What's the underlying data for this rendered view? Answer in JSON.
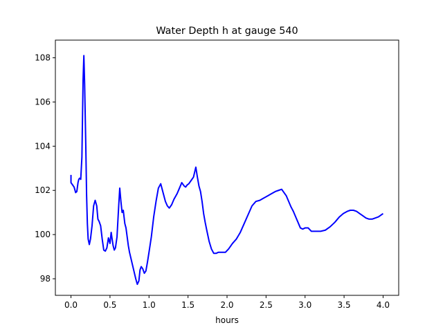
{
  "chart_data": {
    "type": "line",
    "title": "Water Depth h at gauge 540",
    "xlabel": "hours",
    "ylabel": "",
    "xlim": [
      -0.2,
      4.2
    ],
    "ylim": [
      97.25,
      108.8
    ],
    "xticks": [
      "0.0",
      "0.5",
      "1.0",
      "1.5",
      "2.0",
      "2.5",
      "3.0",
      "3.5",
      "4.0"
    ],
    "xtick_values": [
      0.0,
      0.5,
      1.0,
      1.5,
      2.0,
      2.5,
      3.0,
      3.5,
      4.0
    ],
    "yticks": [
      "98",
      "100",
      "102",
      "104",
      "106",
      "108"
    ],
    "ytick_values": [
      98,
      100,
      102,
      104,
      106,
      108
    ],
    "grid": false,
    "legend": "none",
    "series": [
      {
        "color": "#0000ff",
        "x": [
          0.0,
          0.0,
          0.02,
          0.04,
          0.06,
          0.075,
          0.09,
          0.1,
          0.11,
          0.125,
          0.14,
          0.155,
          0.165,
          0.175,
          0.19,
          0.2,
          0.21,
          0.22,
          0.235,
          0.25,
          0.27,
          0.29,
          0.31,
          0.33,
          0.345,
          0.36,
          0.38,
          0.4,
          0.42,
          0.44,
          0.46,
          0.48,
          0.5,
          0.515,
          0.525,
          0.54,
          0.555,
          0.57,
          0.59,
          0.61,
          0.625,
          0.64,
          0.655,
          0.67,
          0.69,
          0.705,
          0.72,
          0.735,
          0.75,
          0.77,
          0.79,
          0.81,
          0.83,
          0.85,
          0.87,
          0.885,
          0.9,
          0.92,
          0.94,
          0.96,
          0.98,
          1.0,
          1.03,
          1.06,
          1.09,
          1.12,
          1.15,
          1.18,
          1.21,
          1.235,
          1.26,
          1.29,
          1.32,
          1.36,
          1.39,
          1.42,
          1.45,
          1.47,
          1.49,
          1.51,
          1.54,
          1.57,
          1.6,
          1.62,
          1.64,
          1.66,
          1.68,
          1.7,
          1.72,
          1.74,
          1.77,
          1.8,
          1.83,
          1.86,
          1.89,
          1.92,
          1.95,
          1.98,
          2.02,
          2.07,
          2.12,
          2.17,
          2.22,
          2.27,
          2.32,
          2.37,
          2.42,
          2.47,
          2.52,
          2.57,
          2.62,
          2.66,
          2.7,
          2.73,
          2.76,
          2.79,
          2.82,
          2.85,
          2.88,
          2.91,
          2.94,
          2.97,
          3.0,
          3.04,
          3.08,
          3.11,
          3.14,
          3.17,
          3.2,
          3.26,
          3.32,
          3.38,
          3.44,
          3.49,
          3.54,
          3.58,
          3.62,
          3.66,
          3.7,
          3.74,
          3.78,
          3.82,
          3.86,
          3.9,
          3.94,
          4.0
        ],
        "y": [
          102.7,
          102.35,
          102.25,
          102.15,
          101.9,
          101.95,
          102.35,
          102.5,
          102.55,
          102.5,
          103.5,
          107.0,
          108.1,
          106.8,
          104.0,
          101.8,
          100.5,
          99.8,
          99.55,
          99.8,
          100.4,
          101.3,
          101.55,
          101.3,
          100.7,
          100.6,
          100.4,
          99.8,
          99.3,
          99.25,
          99.4,
          99.85,
          99.6,
          100.1,
          99.85,
          99.5,
          99.3,
          99.4,
          99.9,
          101.2,
          102.1,
          101.5,
          101.0,
          101.1,
          100.5,
          100.3,
          99.9,
          99.5,
          99.2,
          98.9,
          98.6,
          98.3,
          98.0,
          97.75,
          97.9,
          98.4,
          98.55,
          98.45,
          98.25,
          98.35,
          98.75,
          99.2,
          99.9,
          100.8,
          101.5,
          102.1,
          102.3,
          101.9,
          101.5,
          101.3,
          101.2,
          101.35,
          101.6,
          101.85,
          102.1,
          102.35,
          102.2,
          102.15,
          102.25,
          102.3,
          102.45,
          102.6,
          103.05,
          102.6,
          102.2,
          101.95,
          101.5,
          100.95,
          100.55,
          100.2,
          99.7,
          99.35,
          99.15,
          99.15,
          99.2,
          99.2,
          99.2,
          99.2,
          99.35,
          99.6,
          99.8,
          100.1,
          100.5,
          100.9,
          101.3,
          101.5,
          101.55,
          101.65,
          101.75,
          101.85,
          101.95,
          102.0,
          102.05,
          101.9,
          101.75,
          101.5,
          101.25,
          101.05,
          100.8,
          100.55,
          100.3,
          100.25,
          100.3,
          100.3,
          100.15,
          100.15,
          100.15,
          100.15,
          100.15,
          100.2,
          100.35,
          100.55,
          100.8,
          100.95,
          101.05,
          101.1,
          101.1,
          101.05,
          100.95,
          100.85,
          100.75,
          100.7,
          100.7,
          100.75,
          100.8,
          100.95
        ]
      }
    ]
  }
}
